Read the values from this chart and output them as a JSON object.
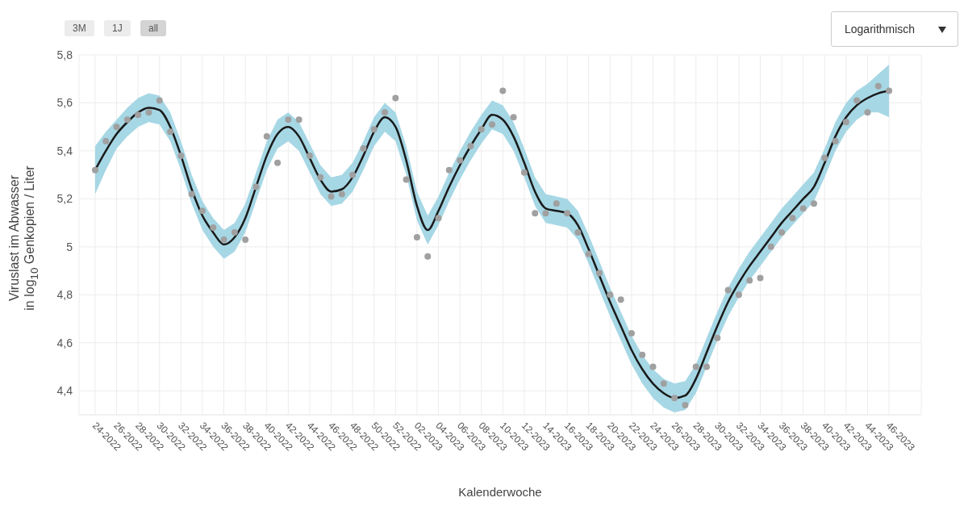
{
  "chart_data": {
    "type": "line",
    "xlabel": "Kalenderwoche",
    "ylabel": "Viruslast im Abwasser\nin log$_{10}$ Genkopien / Liter",
    "annotations": [
      "3M",
      "1J",
      "all",
      "Logarithmisch"
    ],
    "categories": [
      "24-2022",
      null,
      "26-2022",
      null,
      "28-2022",
      null,
      "30-2022",
      null,
      "32-2022",
      null,
      "34-2022",
      null,
      "36-2022",
      null,
      "38-2022",
      null,
      "40-2022",
      null,
      "42-2022",
      null,
      "44-2022",
      null,
      "46-2022",
      null,
      "48-2022",
      null,
      "50-2022",
      null,
      "52-2022",
      null,
      "02-2023",
      null,
      "04-2023",
      null,
      "06-2023",
      null,
      "08-2023",
      null,
      "10-2023",
      null,
      "12-2023",
      null,
      "14-2023",
      null,
      "16-2023",
      null,
      "18-2023",
      null,
      "20-2023",
      null,
      "22-2023",
      null,
      "24-2023",
      null,
      "26-2023",
      null,
      "28-2023",
      null,
      "30-2023",
      null,
      "32-2023",
      null,
      "34-2023",
      null,
      "36-2023",
      null,
      "38-2023",
      null,
      "40-2023",
      null,
      "42-2023",
      null,
      "44-2023",
      null,
      "46-2023"
    ],
    "series": [
      {
        "color": "#1a1a1a",
        "line_style": "solid",
        "values": [
          5.32,
          5.4,
          5.47,
          5.52,
          5.56,
          5.58,
          5.57,
          5.5,
          5.38,
          5.24,
          5.13,
          5.06,
          5.01,
          5.04,
          5.12,
          5.25,
          5.38,
          5.47,
          5.5,
          5.46,
          5.37,
          5.28,
          5.23,
          5.24,
          5.29,
          5.38,
          5.48,
          5.54,
          5.5,
          5.36,
          5.17,
          5.07,
          5.15,
          5.25,
          5.34,
          5.42,
          5.49,
          5.55,
          5.53,
          5.46,
          5.35,
          5.23,
          5.16,
          5.15,
          5.14,
          5.09,
          4.99,
          4.88,
          4.77,
          4.67,
          4.57,
          4.49,
          4.43,
          4.39,
          4.37,
          4.38,
          4.45,
          4.56,
          4.67,
          4.77,
          4.85,
          4.92,
          4.98,
          5.04,
          5.1,
          5.15,
          5.2,
          5.25,
          5.35,
          5.46,
          5.54,
          5.59,
          5.62,
          5.64,
          5.65
        ],
        "lower": [
          5.22,
          5.32,
          5.41,
          5.46,
          5.5,
          5.52,
          5.51,
          5.44,
          5.32,
          5.18,
          5.07,
          5.0,
          4.95,
          4.98,
          5.06,
          5.19,
          5.32,
          5.41,
          5.44,
          5.4,
          5.31,
          5.22,
          5.17,
          5.18,
          5.23,
          5.32,
          5.42,
          5.48,
          5.44,
          5.3,
          5.11,
          5.01,
          5.09,
          5.19,
          5.28,
          5.36,
          5.43,
          5.49,
          5.47,
          5.4,
          5.29,
          5.17,
          5.1,
          5.09,
          5.08,
          5.03,
          4.93,
          4.82,
          4.71,
          4.61,
          4.51,
          4.43,
          4.37,
          4.33,
          4.31,
          4.32,
          4.39,
          4.5,
          4.61,
          4.71,
          4.79,
          4.86,
          4.92,
          4.98,
          5.04,
          5.09,
          5.14,
          5.19,
          5.29,
          5.4,
          5.48,
          5.53,
          5.56,
          5.56,
          5.54
        ],
        "upper": [
          5.42,
          5.48,
          5.53,
          5.58,
          5.62,
          5.64,
          5.63,
          5.56,
          5.44,
          5.3,
          5.19,
          5.12,
          5.07,
          5.1,
          5.18,
          5.31,
          5.44,
          5.53,
          5.56,
          5.52,
          5.43,
          5.34,
          5.29,
          5.3,
          5.35,
          5.44,
          5.54,
          5.6,
          5.56,
          5.42,
          5.23,
          5.13,
          5.21,
          5.31,
          5.4,
          5.48,
          5.55,
          5.61,
          5.59,
          5.52,
          5.41,
          5.29,
          5.22,
          5.21,
          5.2,
          5.15,
          5.05,
          4.94,
          4.83,
          4.73,
          4.63,
          4.55,
          4.49,
          4.45,
          4.43,
          4.44,
          4.51,
          4.62,
          4.73,
          4.83,
          4.91,
          4.98,
          5.04,
          5.1,
          5.16,
          5.21,
          5.26,
          5.31,
          5.41,
          5.52,
          5.6,
          5.65,
          5.68,
          5.72,
          5.76
        ]
      },
      {
        "type": "scatter",
        "color": "#a0a0a0",
        "marker": "circle",
        "values": [
          5.32,
          5.44,
          5.5,
          5.53,
          5.55,
          5.56,
          5.61,
          5.48,
          5.38,
          5.22,
          5.15,
          5.08,
          5.03,
          5.06,
          5.03,
          5.25,
          5.46,
          5.35,
          5.53,
          5.53,
          5.38,
          5.29,
          5.21,
          5.22,
          5.3,
          5.41,
          5.49,
          5.56,
          5.62,
          5.28,
          5.04,
          4.96,
          5.12,
          5.32,
          5.36,
          5.42,
          5.49,
          5.51,
          5.65,
          5.54,
          5.31,
          5.14,
          5.14,
          5.18,
          5.14,
          5.06,
          4.97,
          4.89,
          4.8,
          4.78,
          4.64,
          4.55,
          4.5,
          4.43,
          4.37,
          4.34,
          4.5,
          4.5,
          4.62,
          4.82,
          4.8,
          4.86,
          4.87,
          5.0,
          5.06,
          5.12,
          5.16,
          5.18,
          5.37,
          5.44,
          5.52,
          5.61,
          5.56,
          5.67,
          5.65
        ]
      }
    ],
    "ylim": [
      4.3,
      5.8
    ],
    "yticks": [
      {
        "value": 4.4,
        "label": "4,4"
      },
      {
        "value": 4.6,
        "label": "4,6"
      },
      {
        "value": 4.8,
        "label": "4,8"
      },
      5,
      {
        "value": 5.2,
        "label": "5,2"
      },
      {
        "value": 5.4,
        "label": "5,4"
      },
      {
        "value": 5.6,
        "label": "5,6"
      },
      {
        "value": 5.8,
        "label": "5,8"
      }
    ],
    "grid": true,
    "legend": false
  }
}
